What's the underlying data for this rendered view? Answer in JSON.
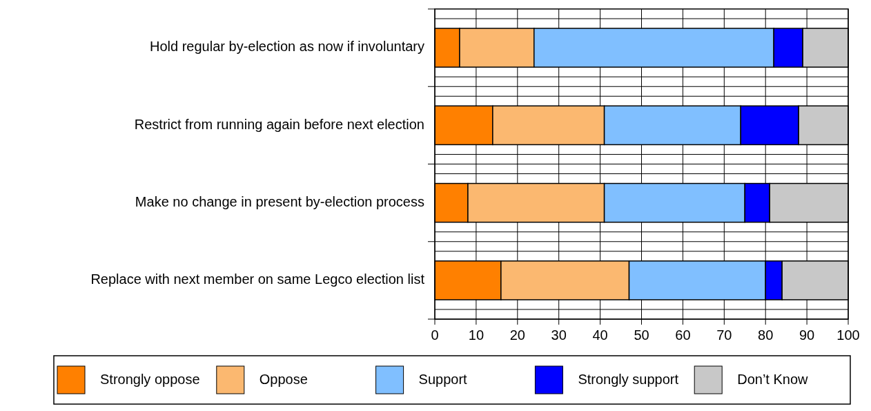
{
  "chart_data": {
    "type": "bar",
    "orientation": "horizontal",
    "stacked": true,
    "categories": [
      "Hold regular by-election as now if involuntary",
      "Restrict from running again before next election",
      "Make no change in present by-election process",
      "Replace with next member on same Legco election list"
    ],
    "series": [
      {
        "name": "Strongly oppose",
        "color": "#ff8000",
        "values": [
          6,
          14,
          8,
          16
        ]
      },
      {
        "name": "Oppose",
        "color": "#fbb870",
        "values": [
          18,
          27,
          33,
          31
        ]
      },
      {
        "name": "Support",
        "color": "#80bfff",
        "values": [
          58,
          33,
          34,
          33
        ]
      },
      {
        "name": "Strongly support",
        "color": "#0000ff",
        "values": [
          7,
          14,
          6,
          4
        ]
      },
      {
        "name": "Don’t Know",
        "color": "#c8c8c8",
        "values": [
          11,
          12,
          19,
          16
        ]
      }
    ],
    "xlim": [
      0,
      100
    ],
    "xticks": [
      0,
      10,
      20,
      30,
      40,
      50,
      60,
      70,
      80,
      90,
      100
    ],
    "grid": true,
    "legend": "bottom"
  }
}
